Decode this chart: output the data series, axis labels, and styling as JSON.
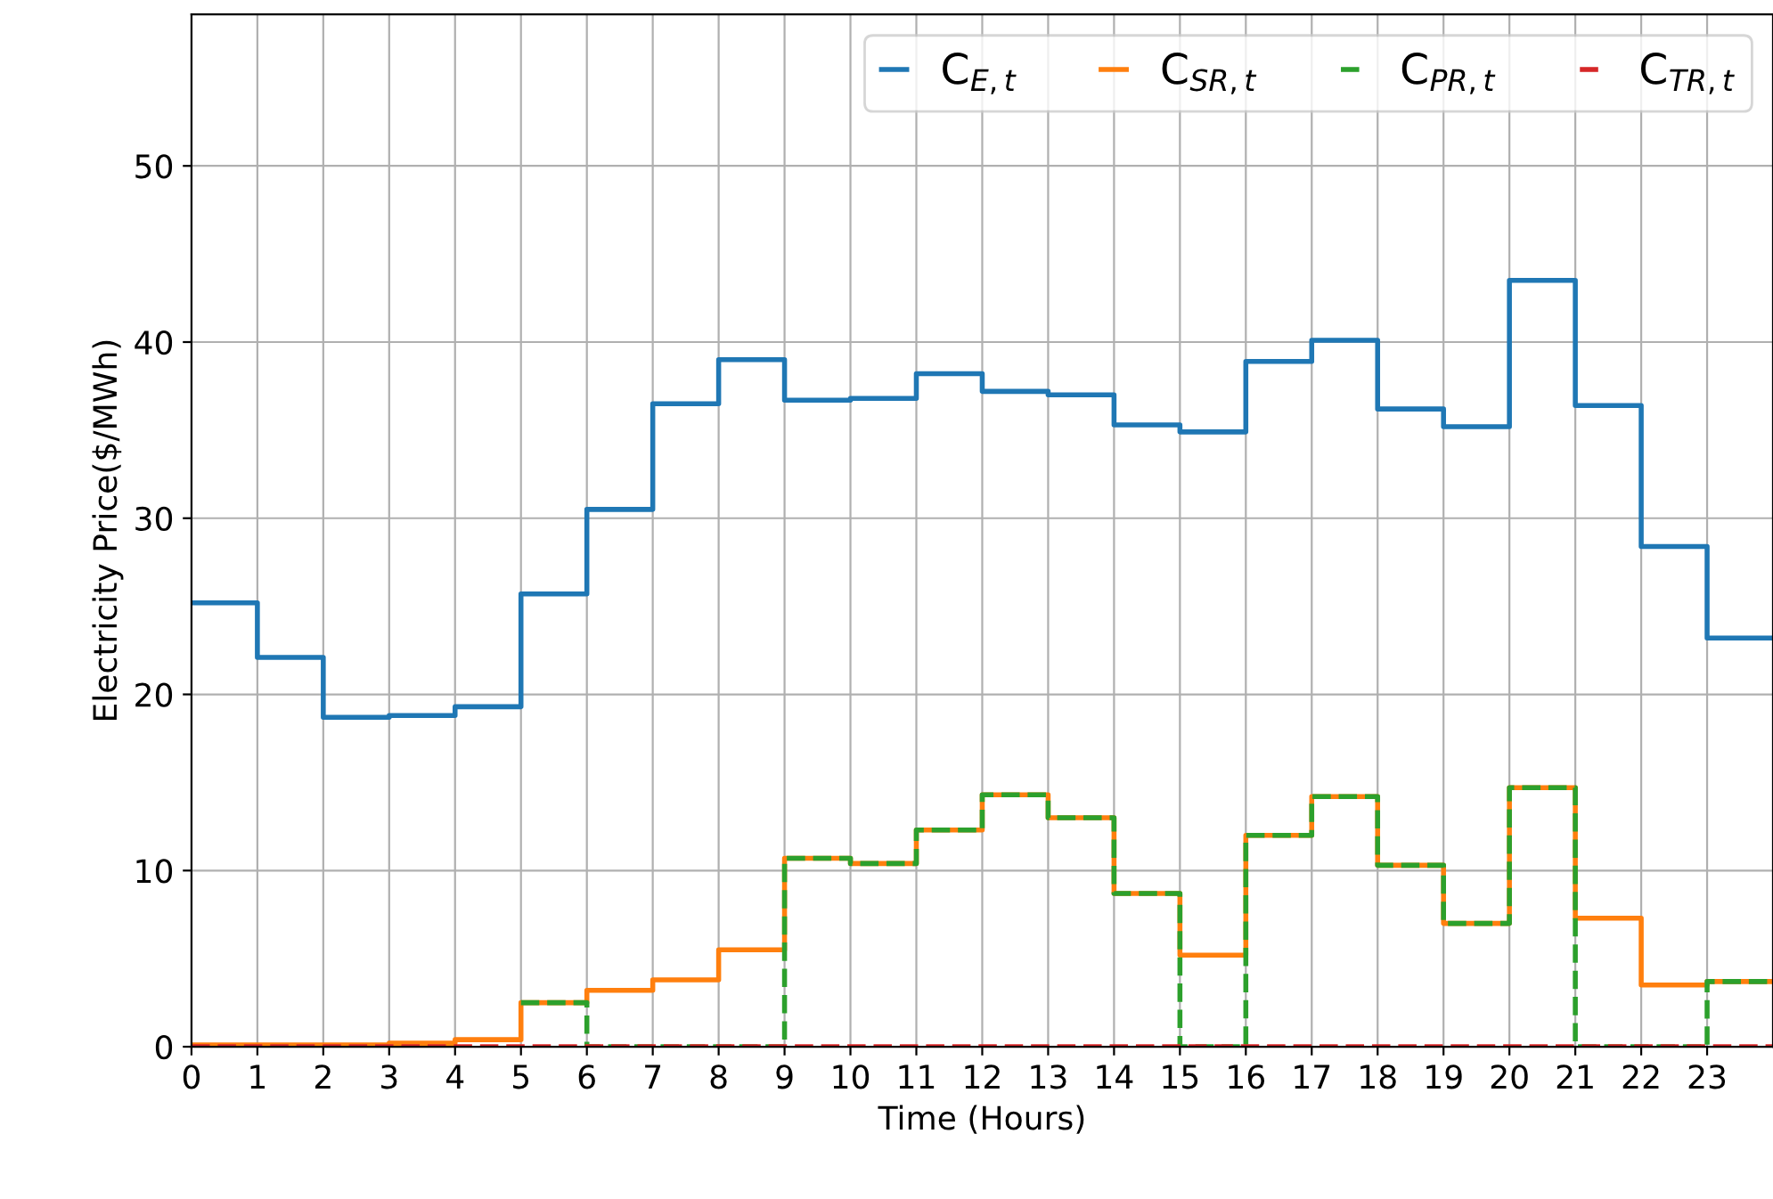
{
  "chart_data": {
    "type": "step",
    "xlabel": "Time (Hours)",
    "ylabel": "Electricity Price($/MWh)",
    "x": [
      0,
      1,
      2,
      3,
      4,
      5,
      6,
      7,
      8,
      9,
      10,
      11,
      12,
      13,
      14,
      15,
      16,
      17,
      18,
      19,
      20,
      21,
      22,
      23,
      24
    ],
    "xlim": [
      0,
      24
    ],
    "xticks": [
      0,
      1,
      2,
      3,
      4,
      5,
      6,
      7,
      8,
      9,
      10,
      11,
      12,
      13,
      14,
      15,
      16,
      17,
      18,
      19,
      20,
      21,
      22,
      23
    ],
    "ylim": [
      0,
      58.6
    ],
    "yticks": [
      0,
      10,
      20,
      30,
      40,
      50
    ],
    "grid": true,
    "legend": "top right",
    "series": [
      {
        "name": "C$_{E,t}$",
        "color": "#1f77b4",
        "line_style": "solid",
        "values": [
          25.2,
          22.1,
          18.7,
          18.8,
          19.3,
          25.7,
          30.5,
          36.5,
          39.0,
          36.7,
          36.8,
          38.2,
          37.2,
          37.0,
          35.3,
          34.9,
          38.9,
          40.1,
          36.2,
          35.2,
          43.5,
          36.4,
          28.4,
          23.2,
          23.2
        ]
      },
      {
        "name": "C$_{SR,t}$",
        "color": "#ff7f0e",
        "line_style": "solid",
        "values": [
          0.1,
          0.1,
          0.1,
          0.2,
          0.4,
          2.5,
          3.2,
          3.8,
          5.5,
          10.7,
          10.4,
          12.3,
          14.3,
          13.0,
          8.7,
          5.2,
          12.0,
          14.2,
          10.3,
          7.0,
          14.7,
          7.3,
          3.5,
          3.7,
          3.7
        ]
      },
      {
        "name": "C$_{PR,t}$",
        "color": "#2ca02c",
        "line_style": "dashed",
        "values": [
          null,
          null,
          null,
          null,
          null,
          2.5,
          0,
          0,
          0,
          10.7,
          10.4,
          12.3,
          14.3,
          13.0,
          8.7,
          0,
          12.0,
          14.2,
          10.3,
          7.0,
          14.7,
          0,
          0,
          3.7,
          3.7
        ]
      },
      {
        "name": "C$_{TR,t}$",
        "color": "#d62728",
        "line_style": "dashed",
        "values": [
          0,
          0,
          0,
          0,
          0,
          0,
          0,
          0,
          0,
          0,
          0,
          0,
          0,
          0,
          0,
          0,
          0,
          0,
          0,
          0,
          0,
          0,
          0,
          0,
          0
        ]
      }
    ]
  }
}
